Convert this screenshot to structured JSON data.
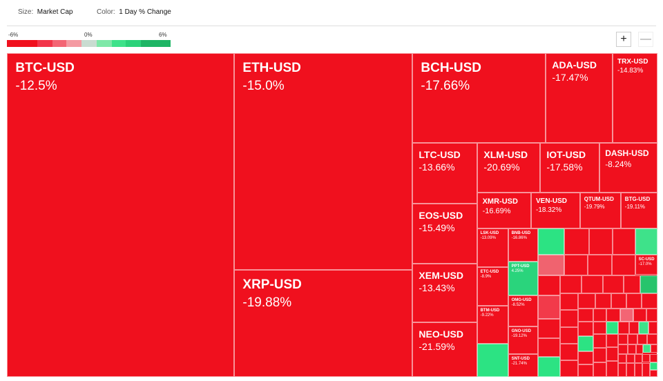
{
  "header": {
    "size_label": "Size:",
    "size_value": "Market Cap",
    "color_label": "Color:",
    "color_value": "1 Day % Change"
  },
  "legend": {
    "min": "-6%",
    "mid": "0%",
    "max": "6%"
  },
  "controls": {
    "zoom_in": "+",
    "zoom_out": "—"
  },
  "tiles": [
    {
      "label": "BTC-USD",
      "change": "-12.5%"
    },
    {
      "label": "ETH-USD",
      "change": "-15.0%"
    },
    {
      "label": "XRP-USD",
      "change": "-19.88%"
    },
    {
      "label": "BCH-USD",
      "change": "-17.66%"
    },
    {
      "label": "ADA-USD",
      "change": "-17.47%"
    },
    {
      "label": "TRX-USD",
      "change": "-14.83%"
    },
    {
      "label": "LTC-USD",
      "change": "-13.66%"
    },
    {
      "label": "XLM-USD",
      "change": "-20.69%"
    },
    {
      "label": "IOT-USD",
      "change": "-17.58%"
    },
    {
      "label": "DASH-USD",
      "change": "-8.24%"
    },
    {
      "label": "XMR-USD",
      "change": "-16.69%"
    },
    {
      "label": "VEN-USD",
      "change": "-18.32%"
    },
    {
      "label": "QTUM-USD",
      "change": "-19.79%"
    },
    {
      "label": "BTG-USD",
      "change": "-19.11%"
    },
    {
      "label": "EOS-USD",
      "change": "-15.49%"
    },
    {
      "label": "XEM-USD",
      "change": "-13.43%"
    },
    {
      "label": "NEO-USD",
      "change": "-21.59%"
    },
    {
      "label": "LSK-USD",
      "change": "-13.09%"
    },
    {
      "label": "BNB-USD",
      "change": "-16.86%"
    },
    {
      "label": "ETC-USD",
      "change": "-8.9%"
    },
    {
      "label": "PPT-USD",
      "change": "4.25%"
    },
    {
      "label": "BTM-USD",
      "change": "-9.22%"
    },
    {
      "label": "OMG-USD",
      "change": "-8.52%"
    },
    {
      "label": "GNO-USD",
      "change": "-19.12%"
    },
    {
      "label": "SNT-USD",
      "change": "-21.74%"
    },
    {
      "label": "SC-USD",
      "change": "-17.0%"
    }
  ]
}
